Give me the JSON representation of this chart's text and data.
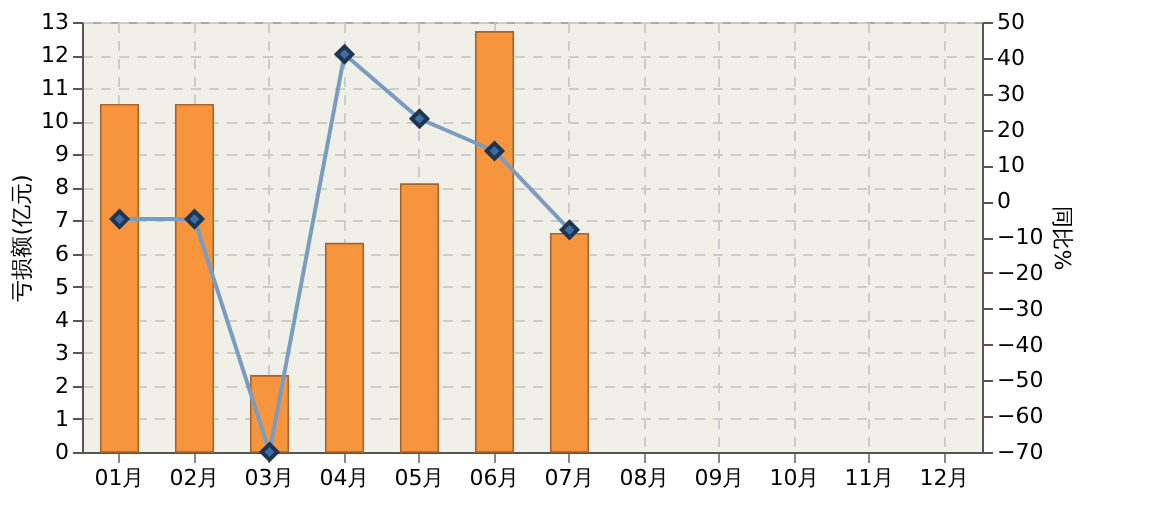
{
  "chart_data": {
    "type": "bar",
    "ylabel": "亏损额(亿元)",
    "y2label": "同比%",
    "categories": [
      "01月",
      "02月",
      "03月",
      "04月",
      "05月",
      "06月",
      "07月",
      "08月",
      "09月",
      "10月",
      "11月",
      "12月"
    ],
    "series": [
      {
        "color": "#f7953f",
        "values": [
          10.5,
          10.5,
          2.3,
          6.3,
          8.1,
          12.7,
          6.6,
          null,
          null,
          null,
          null,
          null
        ]
      },
      {
        "type": "line",
        "axis": "y2",
        "color": "#7a9cc0",
        "marker": "diamond",
        "values": [
          -5,
          -5,
          -70,
          41,
          23,
          14,
          -8,
          null,
          null,
          null,
          null,
          null
        ]
      }
    ],
    "ylim": [
      0,
      13
    ],
    "yticks": [
      0,
      1,
      2,
      3,
      4,
      5,
      6,
      7,
      8,
      9,
      10,
      11,
      12,
      13
    ],
    "y2lim": [
      -70,
      50
    ],
    "y2ticks": [
      -70,
      -60,
      -50,
      -40,
      -30,
      -20,
      -10,
      0,
      10,
      20,
      30,
      40,
      50
    ],
    "grid": true
  }
}
